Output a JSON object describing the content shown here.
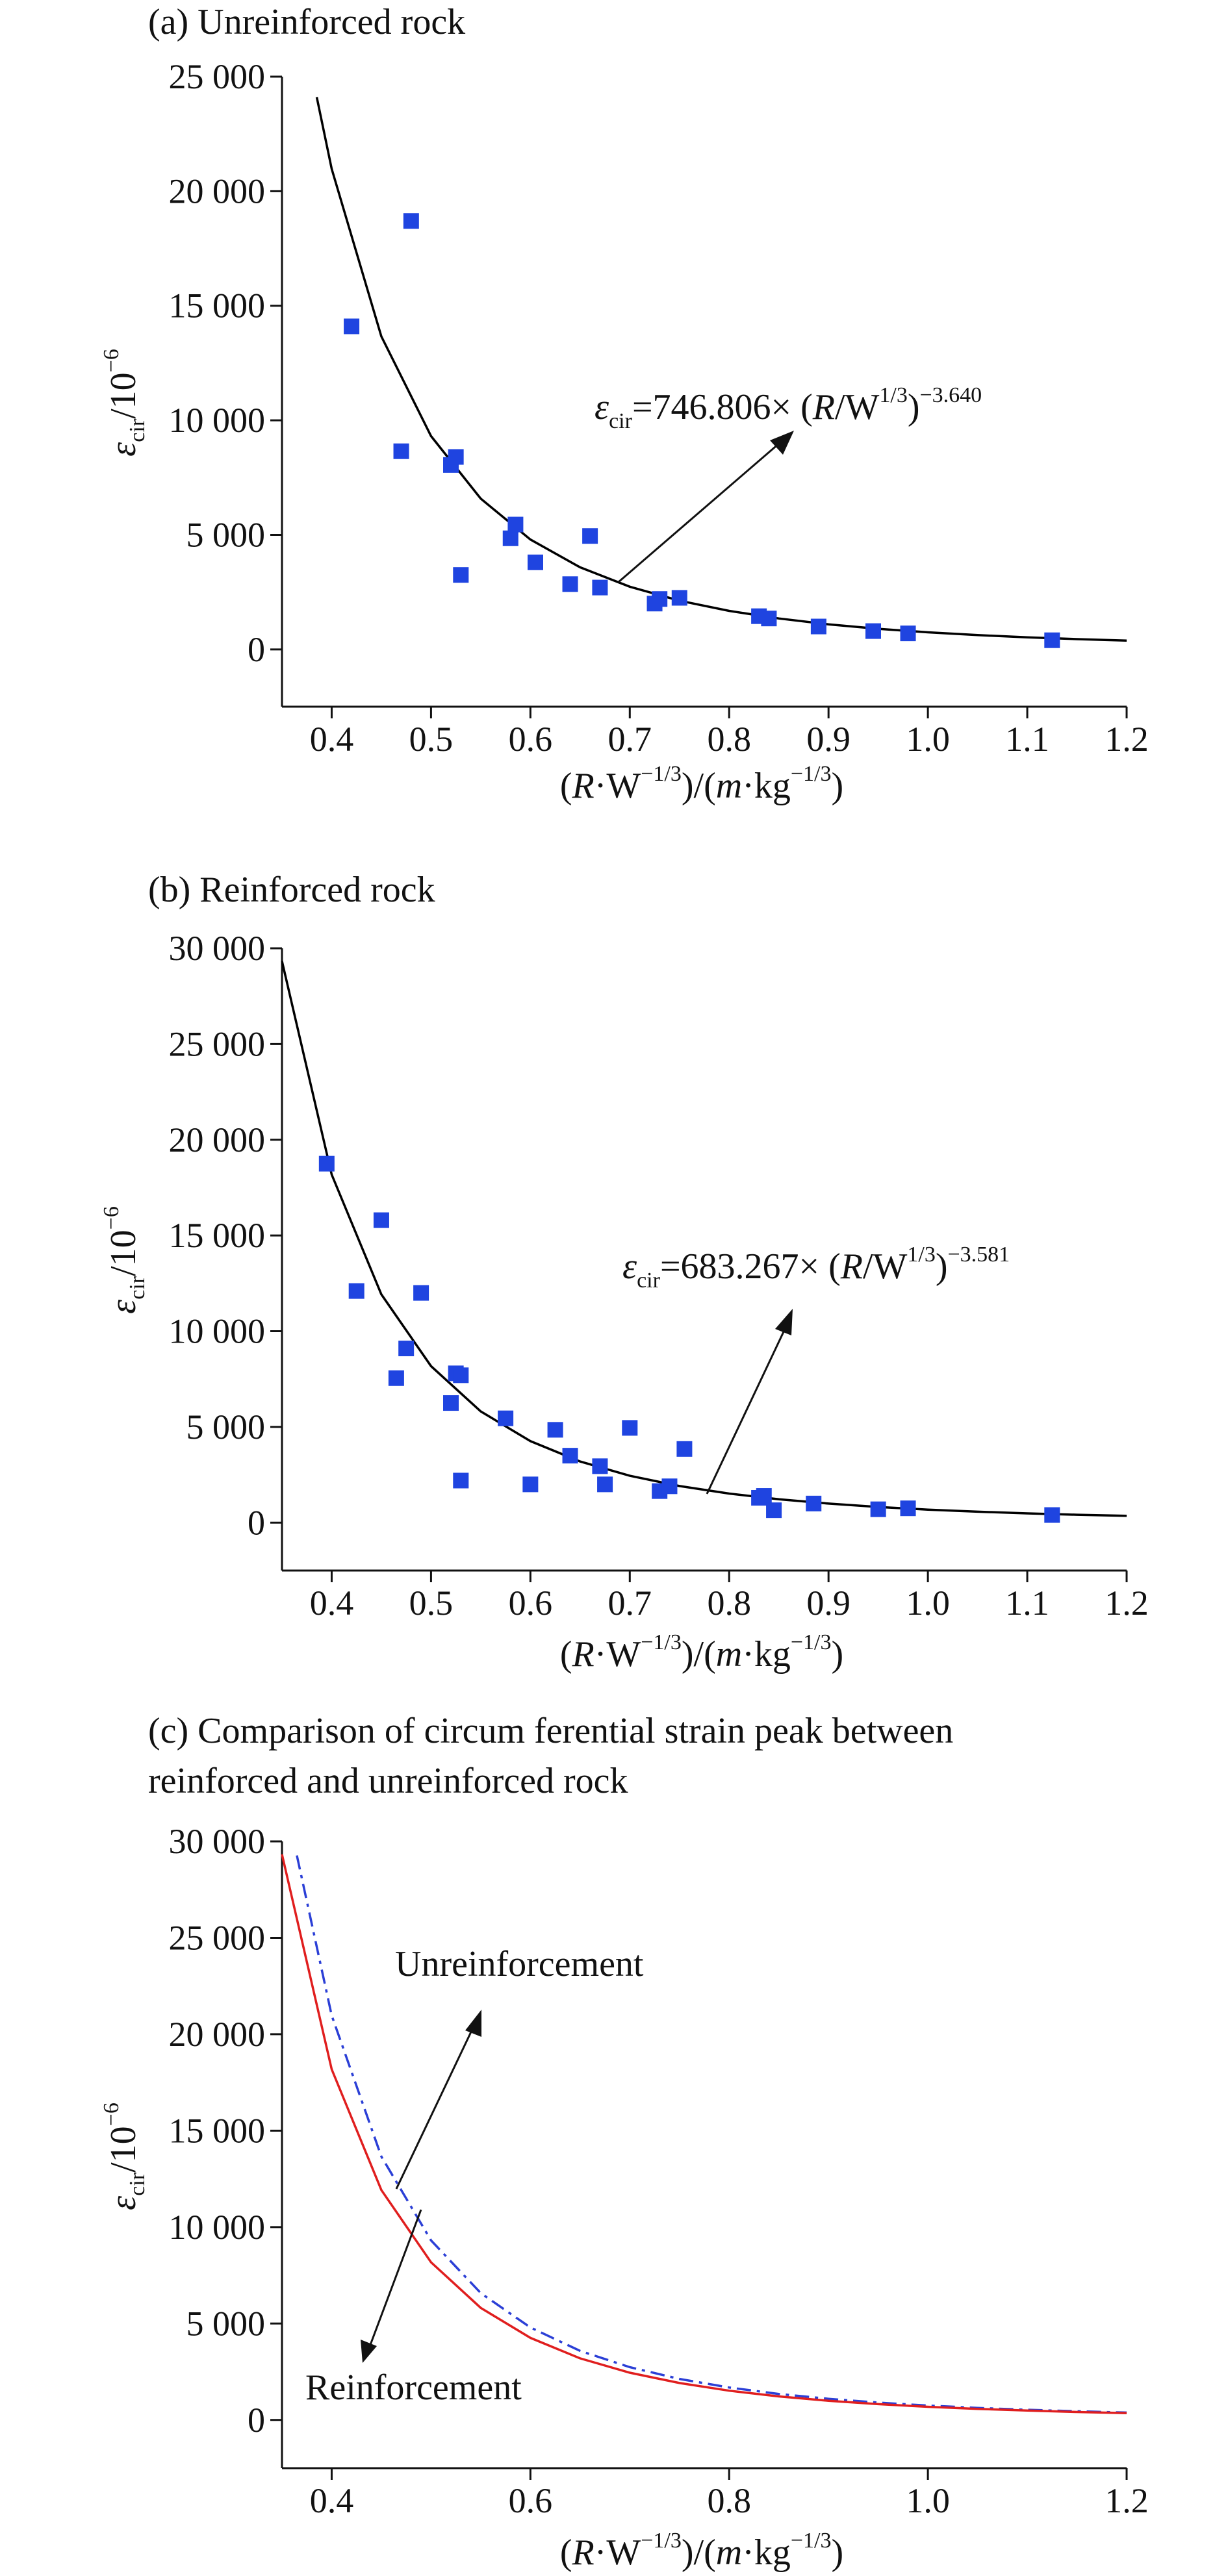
{
  "panels": [
    {
      "title": "(a) Unreinforced rock",
      "chart_data": {
        "type": "scatter",
        "xlabel": "(R·W−1/3)/(m·kg−1/3)",
        "ylabel": "εcir/10−6",
        "xlim": [
          0.35,
          1.2
        ],
        "ylim": [
          -2500,
          25000
        ],
        "xticks": [
          0.4,
          0.5,
          0.6,
          0.7,
          0.8,
          0.9,
          1.0,
          1.1,
          1.2
        ],
        "xtick_labels": [
          "0.4",
          "0.5",
          "0.6",
          "0.7",
          "0.8",
          "0.9",
          "1.0",
          "1.1",
          "1.2"
        ],
        "yticks": [
          0,
          5000,
          10000,
          15000,
          20000,
          25000
        ],
        "ytick_labels": [
          "0",
          "5 000",
          "10 000",
          "15 000",
          "20 000",
          "25 000"
        ],
        "points_color": "#1f44e0",
        "curve_color": "#000000",
        "points": [
          [
            0.42,
            14100
          ],
          [
            0.47,
            8650
          ],
          [
            0.48,
            18700
          ],
          [
            0.52,
            8050
          ],
          [
            0.525,
            8400
          ],
          [
            0.53,
            3250
          ],
          [
            0.58,
            4850
          ],
          [
            0.585,
            5450
          ],
          [
            0.605,
            3800
          ],
          [
            0.64,
            2850
          ],
          [
            0.66,
            4950
          ],
          [
            0.67,
            2700
          ],
          [
            0.725,
            2000
          ],
          [
            0.73,
            2200
          ],
          [
            0.75,
            2250
          ],
          [
            0.83,
            1450
          ],
          [
            0.84,
            1350
          ],
          [
            0.89,
            1000
          ],
          [
            0.945,
            800
          ],
          [
            0.98,
            700
          ],
          [
            1.125,
            400
          ]
        ],
        "fit": {
          "coef": 746.806,
          "exp": -3.64
        },
        "fit_label": {
          "prefix": "=746.806× (",
          "suffix": ")",
          "exponent": "−3.640"
        },
        "curve": {
          "x_start": 0.385,
          "x_end": 1.2,
          "step": 0.05
        }
      }
    },
    {
      "title": "(b) Reinforced rock",
      "chart_data": {
        "type": "scatter",
        "xlabel": "(R·W−1/3)/(m·kg−1/3)",
        "ylabel": "εcir/10−6",
        "xlim": [
          0.35,
          1.2
        ],
        "ylim": [
          -2500,
          30000
        ],
        "xticks": [
          0.4,
          0.5,
          0.6,
          0.7,
          0.8,
          0.9,
          1.0,
          1.1,
          1.2
        ],
        "xtick_labels": [
          "0.4",
          "0.5",
          "0.6",
          "0.7",
          "0.8",
          "0.9",
          "1.0",
          "1.1",
          "1.2"
        ],
        "yticks": [
          0,
          5000,
          10000,
          15000,
          20000,
          25000,
          30000
        ],
        "ytick_labels": [
          "0",
          "5 000",
          "10 000",
          "15 000",
          "20 000",
          "25 000",
          "30 000"
        ],
        "points_color": "#1f44e0",
        "curve_color": "#000000",
        "points": [
          [
            0.395,
            18750
          ],
          [
            0.425,
            12100
          ],
          [
            0.45,
            15800
          ],
          [
            0.465,
            7550
          ],
          [
            0.475,
            9100
          ],
          [
            0.49,
            12000
          ],
          [
            0.52,
            6250
          ],
          [
            0.525,
            7800
          ],
          [
            0.53,
            7700
          ],
          [
            0.53,
            2200
          ],
          [
            0.575,
            5450
          ],
          [
            0.6,
            2000
          ],
          [
            0.625,
            4850
          ],
          [
            0.64,
            3500
          ],
          [
            0.67,
            2950
          ],
          [
            0.675,
            2000
          ],
          [
            0.7,
            4950
          ],
          [
            0.73,
            1650
          ],
          [
            0.74,
            1900
          ],
          [
            0.755,
            3850
          ],
          [
            0.83,
            1300
          ],
          [
            0.835,
            1400
          ],
          [
            0.845,
            650
          ],
          [
            0.885,
            1000
          ],
          [
            0.95,
            700
          ],
          [
            0.98,
            750
          ],
          [
            1.125,
            400
          ]
        ],
        "fit": {
          "coef": 683.267,
          "exp": -3.581
        },
        "fit_label": {
          "prefix": "=683.267× (",
          "suffix": ")",
          "exponent": "−3.581"
        },
        "curve": {
          "x_start": 0.35,
          "x_end": 1.2,
          "step": 0.05
        }
      }
    },
    {
      "title_lines": [
        "(c) Comparison of circum ferential strain peak between",
        "reinforced and unreinforced rock"
      ],
      "chart_data": {
        "type": "line",
        "xlabel": "(R·W−1/3)/(m·kg−1/3)",
        "ylabel": "εcir/10−6",
        "xlim": [
          0.35,
          1.2
        ],
        "ylim": [
          -2500,
          30000
        ],
        "xticks": [
          0.4,
          0.6,
          0.8,
          1.0,
          1.2
        ],
        "xtick_labels": [
          "0.4",
          "0.6",
          "0.8",
          "1.0",
          "1.2"
        ],
        "yticks": [
          0,
          5000,
          10000,
          15000,
          20000,
          25000,
          30000
        ],
        "ytick_labels": [
          "0",
          "5 000",
          "10 000",
          "15 000",
          "20 000",
          "25 000",
          "30 000"
        ],
        "series": [
          {
            "name": "Unreinforcement",
            "color": "#2b3fd6",
            "dash": "dashdot",
            "coef": 746.806,
            "exp": -3.64,
            "x_start": 0.365
          },
          {
            "name": "Reinforcement",
            "color": "#e01e1e",
            "dash": "solid",
            "coef": 683.267,
            "exp": -3.581,
            "x_start": 0.35
          }
        ]
      }
    }
  ]
}
